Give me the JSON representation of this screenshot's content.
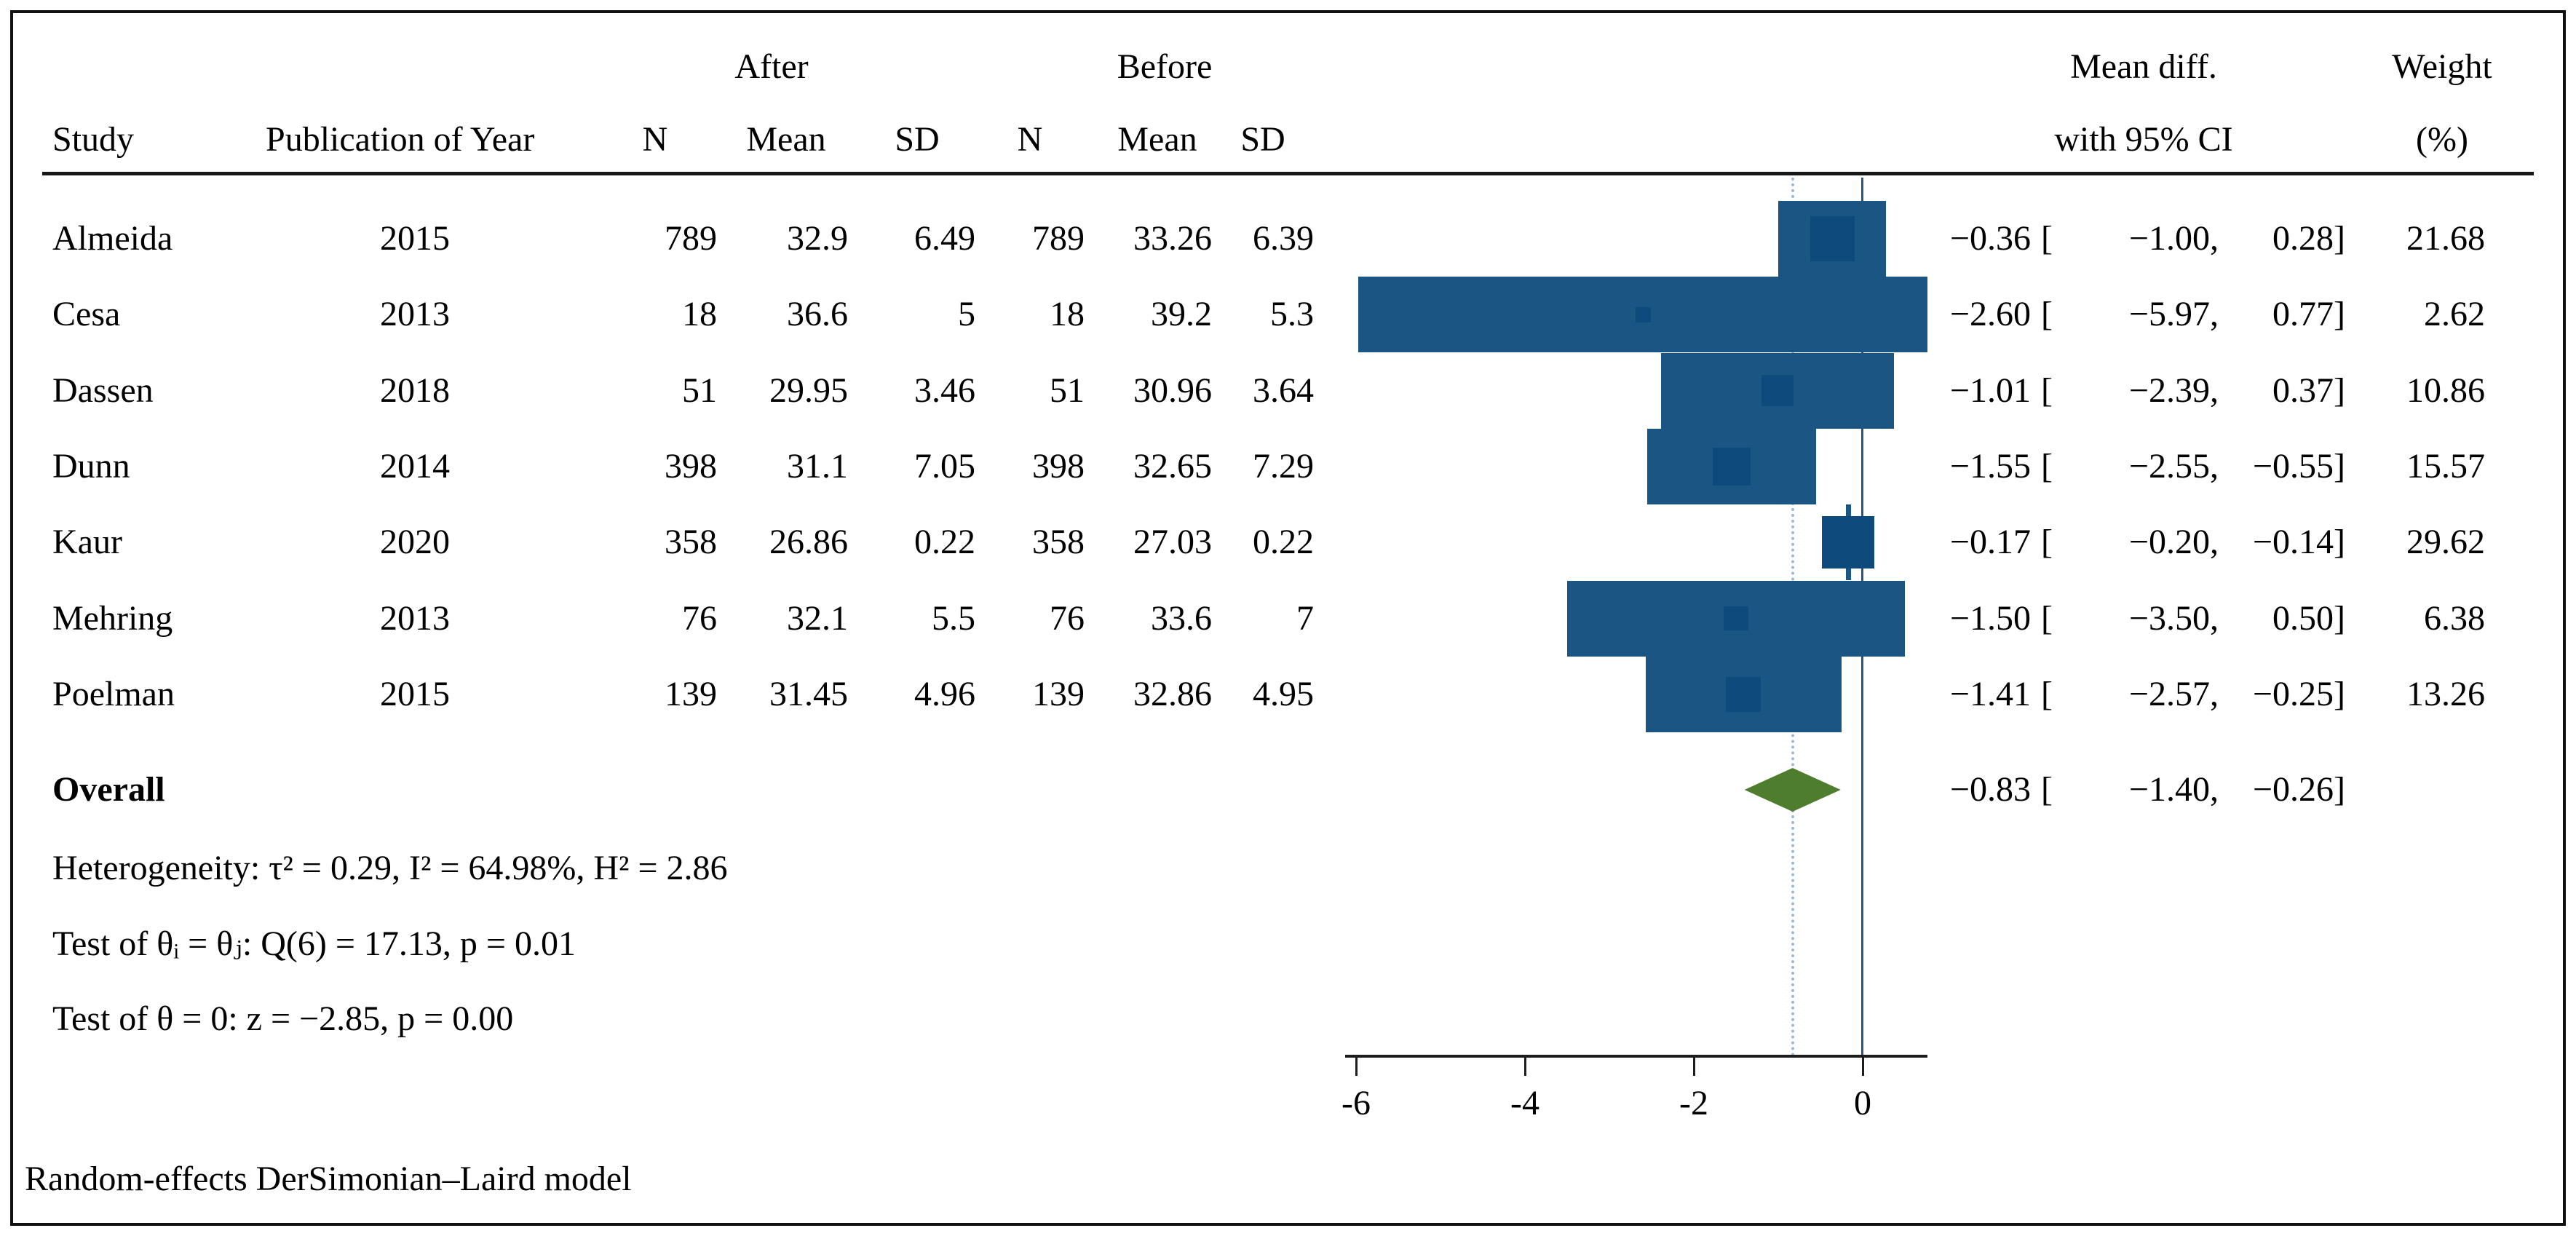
{
  "header": {
    "study": "Study",
    "year": "Publication of Year",
    "after_label": "After",
    "before_label": "Before",
    "n1": "N",
    "mean1": "Mean",
    "sd1": "SD",
    "n2": "N",
    "mean2": "Mean",
    "sd2": "SD",
    "effect_line1": "Mean diff.",
    "effect_line2": "with 95% CI",
    "weight_line1": "Weight",
    "weight_line2": "(%)"
  },
  "rows": [
    {
      "study": "Almeida",
      "year": "2015",
      "n1": "789",
      "mean1": "32.9",
      "sd1": "6.49",
      "n2": "789",
      "mean2": "33.26",
      "sd2": "6.39",
      "est": "−0.36",
      "obr": "[",
      "lo": "−1.00",
      "cm": ",",
      "hi": "0.28",
      "cbr": "]",
      "weight": "21.68"
    },
    {
      "study": "Cesa",
      "year": "2013",
      "n1": "18",
      "mean1": "36.6",
      "sd1": "5",
      "n2": "18",
      "mean2": "39.2",
      "sd2": "5.3",
      "est": "−2.60",
      "obr": "[",
      "lo": "−5.97",
      "cm": ",",
      "hi": "0.77",
      "cbr": "]",
      "weight": "2.62"
    },
    {
      "study": "Dassen",
      "year": "2018",
      "n1": "51",
      "mean1": "29.95",
      "sd1": "3.46",
      "n2": "51",
      "mean2": "30.96",
      "sd2": "3.64",
      "est": "−1.01",
      "obr": "[",
      "lo": "−2.39",
      "cm": ",",
      "hi": "0.37",
      "cbr": "]",
      "weight": "10.86"
    },
    {
      "study": "Dunn",
      "year": "2014",
      "n1": "398",
      "mean1": "31.1",
      "sd1": "7.05",
      "n2": "398",
      "mean2": "32.65",
      "sd2": "7.29",
      "est": "−1.55",
      "obr": "[",
      "lo": "−2.55",
      "cm": ",",
      "hi": "−0.55",
      "cbr": "]",
      "weight": "15.57"
    },
    {
      "study": "Kaur",
      "year": "2020",
      "n1": "358",
      "mean1": "26.86",
      "sd1": "0.22",
      "n2": "358",
      "mean2": "27.03",
      "sd2": "0.22",
      "est": "−0.17",
      "obr": "[",
      "lo": "−0.20",
      "cm": ",",
      "hi": "−0.14",
      "cbr": "]",
      "weight": "29.62"
    },
    {
      "study": "Mehring",
      "year": "2013",
      "n1": "76",
      "mean1": "32.1",
      "sd1": "5.5",
      "n2": "76",
      "mean2": "33.6",
      "sd2": "7",
      "est": "−1.50",
      "obr": "[",
      "lo": "−3.50",
      "cm": ",",
      "hi": "0.50",
      "cbr": "]",
      "weight": "6.38"
    },
    {
      "study": "Poelman",
      "year": "2015",
      "n1": "139",
      "mean1": "31.45",
      "sd1": "4.96",
      "n2": "139",
      "mean2": "32.86",
      "sd2": "4.95",
      "est": "−1.41",
      "obr": "[",
      "lo": "−2.57",
      "cm": ",",
      "hi": "−0.25",
      "cbr": "]",
      "weight": "13.26"
    }
  ],
  "overall": {
    "label": "Overall",
    "est": "−0.83",
    "obr": "[",
    "lo": "−1.40",
    "cm": ",",
    "hi": "−0.26",
    "cbr": "]"
  },
  "stats": {
    "heterogeneity": "Heterogeneity: τ² = 0.29, I² = 64.98%, H² = 2.86",
    "test_q": "Test of θᵢ = θⱼ: Q(6) = 17.13, p = 0.01",
    "test_z": "Test of θ = 0: z = −2.85, p = 0.00"
  },
  "axis": {
    "tick_labels": [
      "-6",
      "-4",
      "-2",
      "0"
    ]
  },
  "note": "Random-effects DerSimonian–Laird model",
  "colors": {
    "marker": "#0f4a7c",
    "ci_line": "#1b5583",
    "zero_line": "#2a567e",
    "ref_line_dotted": "#9db8cf",
    "diamond": "#4e7d2e"
  },
  "chart_data": {
    "type": "scatter",
    "subtype": "forest-plot",
    "title": "",
    "xlabel": "Mean difference with 95% CI",
    "x_ticks": [
      -6,
      -4,
      -2,
      0
    ],
    "xlim": [
      -6.2,
      0.8
    ],
    "reference_line_x": 0,
    "overall_dashed_line_x": -0.83,
    "grid": false,
    "legend_position": "none",
    "columns": [
      "Study",
      "Publication of Year",
      "N (After)",
      "Mean (After)",
      "SD (After)",
      "N (Before)",
      "Mean (Before)",
      "SD (Before)",
      "Mean diff.",
      "95% CI low",
      "95% CI high",
      "Weight (%)"
    ],
    "studies": [
      {
        "study": "Almeida",
        "year": 2015,
        "n_after": 789,
        "mean_after": 32.9,
        "sd_after": 6.49,
        "n_before": 789,
        "mean_before": 33.26,
        "sd_before": 6.39,
        "estimate": -0.36,
        "ci_lower": -1.0,
        "ci_upper": 0.28,
        "weight_pct": 21.68
      },
      {
        "study": "Cesa",
        "year": 2013,
        "n_after": 18,
        "mean_after": 36.6,
        "sd_after": 5,
        "n_before": 18,
        "mean_before": 39.2,
        "sd_before": 5.3,
        "estimate": -2.6,
        "ci_lower": -5.97,
        "ci_upper": 0.77,
        "weight_pct": 2.62
      },
      {
        "study": "Dassen",
        "year": 2018,
        "n_after": 51,
        "mean_after": 29.95,
        "sd_after": 3.46,
        "n_before": 51,
        "mean_before": 30.96,
        "sd_before": 3.64,
        "estimate": -1.01,
        "ci_lower": -2.39,
        "ci_upper": 0.37,
        "weight_pct": 10.86
      },
      {
        "study": "Dunn",
        "year": 2014,
        "n_after": 398,
        "mean_after": 31.1,
        "sd_after": 7.05,
        "n_before": 398,
        "mean_before": 32.65,
        "sd_before": 7.29,
        "estimate": -1.55,
        "ci_lower": -2.55,
        "ci_upper": -0.55,
        "weight_pct": 15.57
      },
      {
        "study": "Kaur",
        "year": 2020,
        "n_after": 358,
        "mean_after": 26.86,
        "sd_after": 0.22,
        "n_before": 358,
        "mean_before": 27.03,
        "sd_before": 0.22,
        "estimate": -0.17,
        "ci_lower": -0.2,
        "ci_upper": -0.14,
        "weight_pct": 29.62
      },
      {
        "study": "Mehring",
        "year": 2013,
        "n_after": 76,
        "mean_after": 32.1,
        "sd_after": 5.5,
        "n_before": 76,
        "mean_before": 33.6,
        "sd_before": 7,
        "estimate": -1.5,
        "ci_lower": -3.5,
        "ci_upper": 0.5,
        "weight_pct": 6.38
      },
      {
        "study": "Poelman",
        "year": 2015,
        "n_after": 139,
        "mean_after": 31.45,
        "sd_after": 4.96,
        "n_before": 139,
        "mean_before": 32.86,
        "sd_before": 4.95,
        "estimate": -1.41,
        "ci_lower": -2.57,
        "ci_upper": -0.25,
        "weight_pct": 13.26
      }
    ],
    "overall": {
      "estimate": -0.83,
      "ci_lower": -1.4,
      "ci_upper": -0.26
    },
    "heterogeneity": {
      "tau2": 0.29,
      "I2_pct": 64.98,
      "H2": 2.86
    },
    "test_homogeneity": {
      "statistic": "Q(6)",
      "Q": 17.13,
      "p": 0.01
    },
    "test_overall_effect": {
      "z": -2.85,
      "p": 0.0
    },
    "model": "Random-effects DerSimonian–Laird model"
  }
}
